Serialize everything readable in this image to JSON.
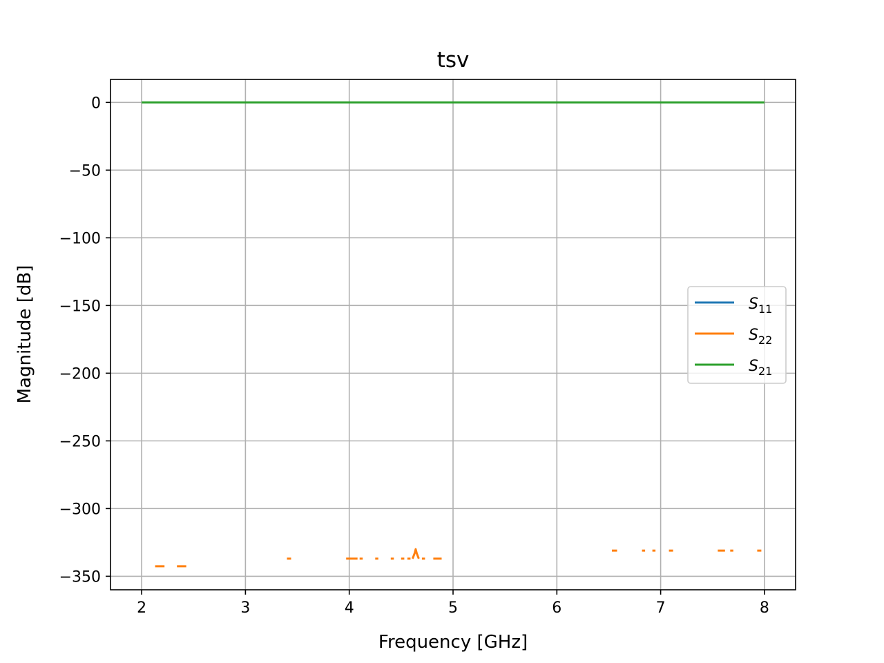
{
  "chart_data": {
    "type": "line",
    "title": "tsv",
    "xlabel": "Frequency [GHz]",
    "ylabel": "Magnitude [dB]",
    "xlim": [
      1.7,
      8.3
    ],
    "ylim": [
      -360,
      17
    ],
    "x_ticks": [
      2,
      3,
      4,
      5,
      6,
      7,
      8
    ],
    "y_ticks": [
      0,
      -50,
      -100,
      -150,
      -200,
      -250,
      -300,
      -350
    ],
    "x_tick_labels": [
      "2",
      "3",
      "4",
      "5",
      "6",
      "7",
      "8"
    ],
    "y_tick_labels": [
      "0",
      "−50",
      "−100",
      "−150",
      "−200",
      "−250",
      "−300",
      "−350"
    ],
    "grid": true,
    "legend_position": "center-right",
    "series": [
      {
        "name": "S11",
        "legend_base": "S",
        "legend_sub": "11",
        "color": "#1f77b4",
        "segments": []
      },
      {
        "name": "S22",
        "legend_base": "S",
        "legend_sub": "22",
        "color": "#ff7f0e",
        "segments": [
          [
            [
              2.13,
              -342.6
            ],
            [
              2.22,
              -342.6
            ]
          ],
          [
            [
              2.34,
              -342.6
            ],
            [
              2.43,
              -342.6
            ]
          ],
          [
            [
              3.4,
              -337.0
            ],
            [
              3.44,
              -337.0
            ]
          ],
          [
            [
              3.97,
              -337.0
            ],
            [
              4.08,
              -337.0
            ]
          ],
          [
            [
              4.1,
              -337.0
            ],
            [
              4.13,
              -337.0
            ]
          ],
          [
            [
              4.25,
              -337.0
            ],
            [
              4.28,
              -337.0
            ]
          ],
          [
            [
              4.4,
              -337.0
            ],
            [
              4.43,
              -337.0
            ]
          ],
          [
            [
              4.5,
              -337.0
            ],
            [
              4.53,
              -337.0
            ]
          ],
          [
            [
              4.56,
              -337.0
            ],
            [
              4.59,
              -337.0
            ]
          ],
          [
            [
              4.61,
              -337.0
            ],
            [
              4.63,
              -333.0
            ],
            [
              4.64,
              -330.0
            ],
            [
              4.65,
              -333.0
            ],
            [
              4.67,
              -337.0
            ]
          ],
          [
            [
              4.7,
              -337.0
            ],
            [
              4.73,
              -337.0
            ]
          ],
          [
            [
              4.81,
              -337.0
            ],
            [
              4.89,
              -337.0
            ]
          ],
          [
            [
              6.53,
              -331.0
            ],
            [
              6.58,
              -331.0
            ]
          ],
          [
            [
              6.82,
              -331.0
            ],
            [
              6.85,
              -331.0
            ]
          ],
          [
            [
              6.92,
              -331.0
            ],
            [
              6.95,
              -331.0
            ]
          ],
          [
            [
              7.08,
              -331.0
            ],
            [
              7.12,
              -331.0
            ]
          ],
          [
            [
              7.55,
              -331.0
            ],
            [
              7.62,
              -331.0
            ]
          ],
          [
            [
              7.67,
              -331.0
            ],
            [
              7.7,
              -331.0
            ]
          ],
          [
            [
              7.93,
              -331.0
            ],
            [
              7.97,
              -331.0
            ]
          ]
        ]
      },
      {
        "name": "S21",
        "legend_base": "S",
        "legend_sub": "21",
        "color": "#2ca02c",
        "segments": [
          [
            [
              2.0,
              0
            ],
            [
              8.0,
              0
            ]
          ]
        ]
      }
    ]
  }
}
